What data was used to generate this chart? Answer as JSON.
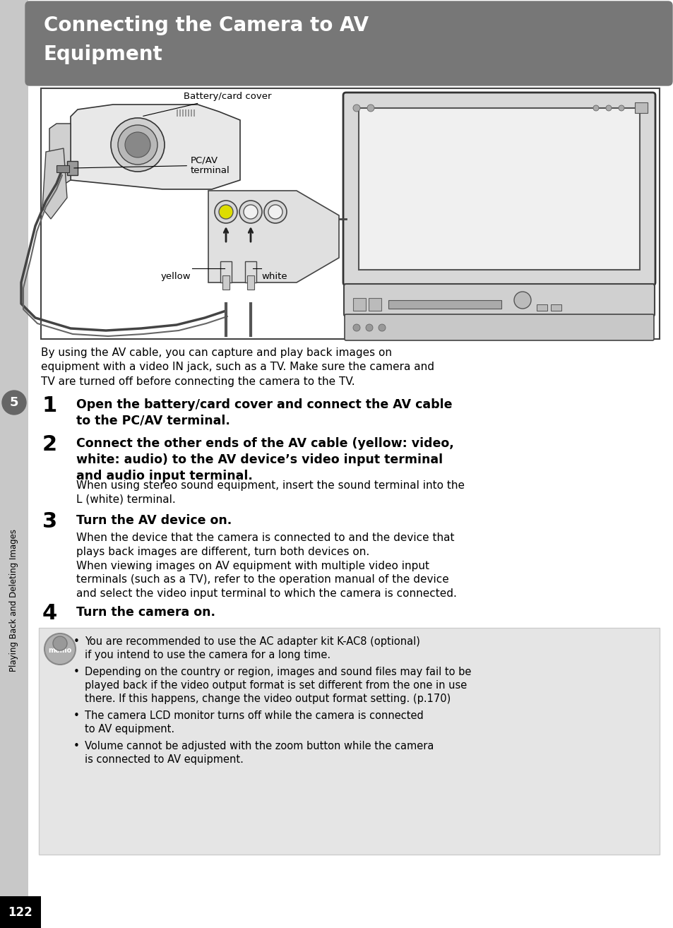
{
  "page_bg": "#ffffff",
  "header_bg": "#777777",
  "header_text_color": "#ffffff",
  "header_font_size": 20,
  "header_text_line1": "Connecting the Camera to AV",
  "header_text_line2": "Equipment",
  "left_sidebar_color": "#c8c8c8",
  "page_number": "122",
  "page_number_bg": "#000000",
  "page_number_color": "#ffffff",
  "circle5_bg": "#666666",
  "sidebar_text": "Playing Back and Deleting Images",
  "intro_text": "By using the AV cable, you can capture and play back images on\nequipment with a video IN jack, such as a TV. Make sure the camera and\nTV are turned off before connecting the camera to the TV.",
  "step1_num": "1",
  "step1_bold": "Open the battery/card cover and connect the AV cable\nto the PC/AV terminal.",
  "step2_num": "2",
  "step2_bold": "Connect the other ends of the AV cable (yellow: video,\nwhite: audio) to the AV device’s video input terminal\nand audio input terminal.",
  "step2_normal": "When using stereo sound equipment, insert the sound terminal into the\nL (white) terminal.",
  "step3_num": "3",
  "step3_bold": "Turn the AV device on.",
  "step3_normal": "When the device that the camera is connected to and the device that\nplays back images are different, turn both devices on.\nWhen viewing images on AV equipment with multiple video input\nterminals (such as a TV), refer to the operation manual of the device\nand select the video input terminal to which the camera is connected.",
  "step4_num": "4",
  "step4_bold": "Turn the camera on.",
  "memo_bg": "#e5e5e5",
  "memo_border": "#cccccc",
  "memo_bullets": [
    "You are recommended to use the AC adapter kit K-AC8 (optional)\nif you intend to use the camera for a long time.",
    "Depending on the country or region, images and sound files may fail to be\nplayed back if the video output format is set different from the one in use\nthere. If this happens, change the video output format setting. (p.170)",
    "The camera LCD monitor turns off while the camera is connected\nto AV equipment.",
    "Volume cannot be adjusted with the zoom button while the camera\nis connected to AV equipment."
  ],
  "diag_label_battery": "Battery/card cover",
  "diag_label_pcav": "PC/AV\nterminal",
  "diag_label_yellow": "yellow",
  "diag_label_white": "white"
}
